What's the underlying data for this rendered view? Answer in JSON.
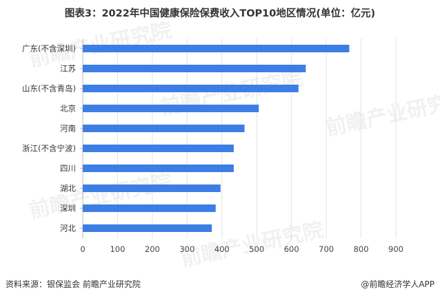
{
  "title": "图表3：2022年中国健康保险保费收入TOP10地区情况(单位：亿元)",
  "footer": {
    "source": "资料来源：银保监会 前瞻产业研究院",
    "brand": "@前瞻经济学人APP"
  },
  "watermark": "前瞻产业研究院",
  "colors": {
    "bar": "#3d7ee6",
    "grid": "#e3e3e3",
    "axis": "#bbbbbb"
  },
  "chart_data": {
    "type": "bar",
    "orientation": "horizontal",
    "categories": [
      "广东(不含深圳)",
      "江苏",
      "山东(不含青岛)",
      "北京",
      "河南",
      "浙江(不含宁波)",
      "四川",
      "湖北",
      "深圳",
      "河北"
    ],
    "values": [
      766,
      641,
      620,
      506,
      465,
      434,
      434,
      396,
      382,
      371
    ],
    "xlim": [
      0,
      900
    ],
    "xticks": [
      0,
      100,
      200,
      300,
      400,
      500,
      600,
      700,
      800,
      900
    ],
    "grid": true,
    "legend": "none"
  }
}
